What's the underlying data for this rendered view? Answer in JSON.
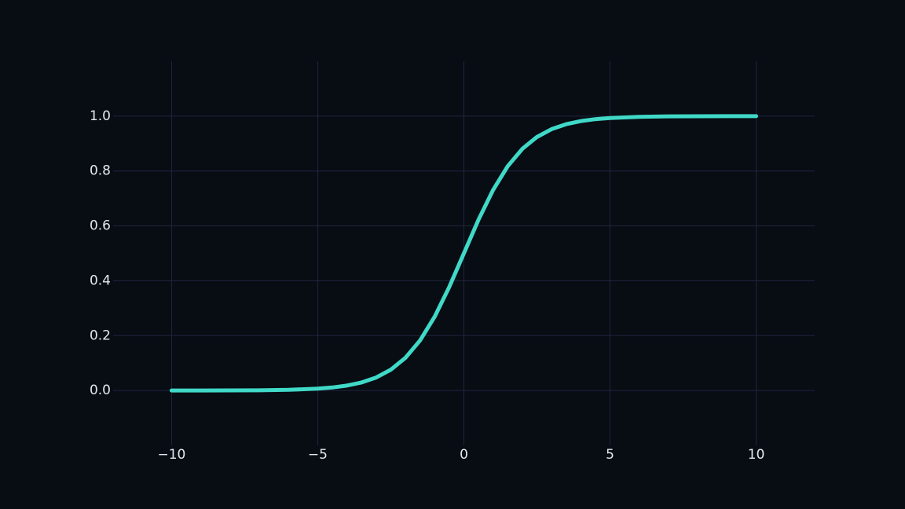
{
  "chart_data": {
    "type": "line",
    "title": "",
    "xlabel": "",
    "ylabel": "",
    "xlim": [
      -12,
      12
    ],
    "ylim": [
      -0.2,
      1.2
    ],
    "x_ticks": [
      -10,
      -5,
      0,
      5,
      10
    ],
    "x_tick_labels": [
      "−10",
      "−5",
      "0",
      "5",
      "10"
    ],
    "y_ticks": [
      0.0,
      0.2,
      0.4,
      0.6,
      0.8,
      1.0
    ],
    "y_tick_labels": [
      "0.0",
      "0.2",
      "0.4",
      "0.6",
      "0.8",
      "1.0"
    ],
    "grid": true,
    "background_color": "#080c13",
    "grid_color": "#1f2540",
    "series": [
      {
        "color": "#40d9c7",
        "x": [
          -10,
          -9,
          -8,
          -7,
          -6,
          -5,
          -4.5,
          -4,
          -3.5,
          -3,
          -2.5,
          -2,
          -1.5,
          -1,
          -0.5,
          0,
          0.5,
          1,
          1.5,
          2,
          2.5,
          3,
          3.5,
          4,
          4.5,
          5,
          6,
          7,
          8,
          9,
          10
        ],
        "y": [
          0.0,
          0.0001,
          0.0003,
          0.0009,
          0.0025,
          0.0067,
          0.011,
          0.018,
          0.0293,
          0.0474,
          0.0759,
          0.1192,
          0.1824,
          0.2689,
          0.3775,
          0.5,
          0.6225,
          0.7311,
          0.8176,
          0.8808,
          0.9241,
          0.9526,
          0.9707,
          0.982,
          0.989,
          0.9933,
          0.9975,
          0.9991,
          0.9997,
          0.9999,
          1.0
        ]
      }
    ]
  }
}
